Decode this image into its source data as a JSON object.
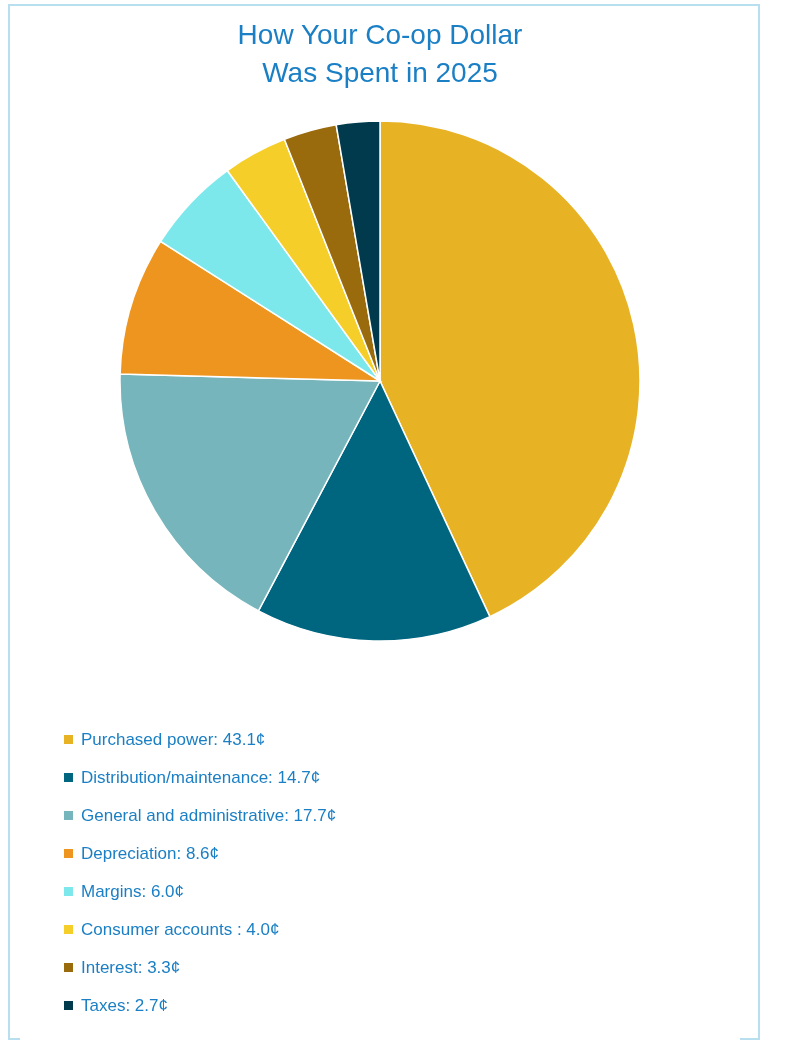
{
  "chart_data": {
    "type": "pie",
    "title": "How Your Co-op Dollar\nWas Spent in 2025",
    "categories": [
      "Purchased power: 43.1¢",
      "Distribution/maintenance: 14.7¢",
      "General and administrative: 17.7¢",
      "Depreciation: 8.6¢",
      "Margins: 6.0¢",
      "Consumer accounts : 4.0¢",
      "Interest: 3.3¢",
      "Taxes: 2.7¢"
    ],
    "values": [
      43.1,
      14.7,
      17.7,
      8.6,
      6.0,
      4.0,
      3.3,
      2.7
    ],
    "colors": [
      "#e8b225",
      "#006680",
      "#75b5bb",
      "#ee951f",
      "#7de8ec",
      "#f5ce2a",
      "#9a6b0d",
      "#003a4c"
    ],
    "legend": "bottom"
  }
}
